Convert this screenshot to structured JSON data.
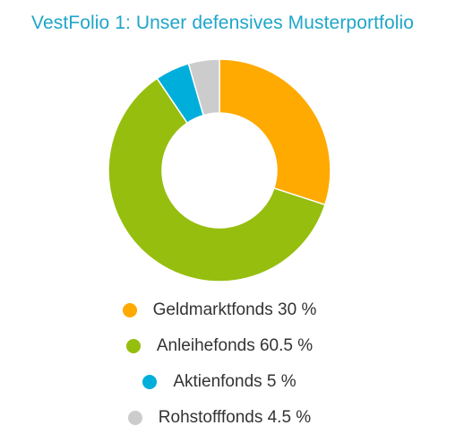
{
  "title": "VestFolio 1: Unser defensives Musterportfolio",
  "chart_data": {
    "type": "pie",
    "variant": "donut",
    "title": "VestFolio 1: Unser defensives Musterportfolio",
    "slices": [
      {
        "label": "Geldmarktfonds",
        "value": 30,
        "legend": "Geldmarktfonds 30 %",
        "color": "#ffaa00"
      },
      {
        "label": "Anleihefonds",
        "value": 60.5,
        "legend": "Anleihefonds 60.5 %",
        "color": "#96be0f"
      },
      {
        "label": "Aktienfonds",
        "value": 5,
        "legend": "Aktienfonds 5 %",
        "color": "#00aedb"
      },
      {
        "label": "Rohstofffonds",
        "value": 4.5,
        "legend": "Rohstofffonds 4.5 %",
        "color": "#cccccc"
      }
    ],
    "legend_position": "bottom",
    "start_angle": "12 o'clock",
    "direction": "clockwise"
  },
  "colors": {
    "title": "#1fa6c9",
    "legend_text": "#333333",
    "slice_border": "#ffffff"
  }
}
